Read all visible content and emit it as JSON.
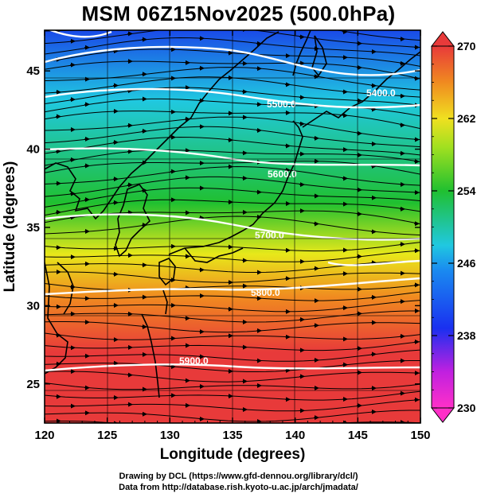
{
  "title": "MSM 06Z15Nov2025 (500.0hPa)",
  "credits": {
    "line1": "Drawing by DCL (https://www.gfd-dennou.org/library/dcl/)",
    "line2": "Data from http://database.rish.kyoto-u.ac.jp/arch/jmadata/"
  },
  "colors": {
    "red": "#e83a3a",
    "orange": "#f08a20",
    "yellow": "#e8e81a",
    "green": "#20c030",
    "cyan": "#20c8e0",
    "blue": "#1a4ae8",
    "purple": "#c020e0",
    "magenta": "#ff30c8"
  },
  "chart_data": {
    "type": "heatmap",
    "title": "MSM 06Z15Nov2025 (500.0hPa)",
    "xlabel": "Longitude (degrees)",
    "ylabel": "Latitude  (degrees)",
    "xlim": [
      120,
      150
    ],
    "ylim": [
      22.5,
      47.6
    ],
    "xticks": [
      "120",
      "125",
      "130",
      "135",
      "140",
      "145",
      "150"
    ],
    "yticks": [
      "25",
      "30",
      "35",
      "40",
      "45"
    ],
    "colorbar": {
      "quantity": "temperature",
      "range": [
        230,
        270
      ],
      "ticks": [
        "230",
        "238",
        "246",
        "254",
        "262",
        "270"
      ]
    },
    "contours": [
      {
        "label": "5400.0",
        "label_lon": 145.7,
        "label_lat": 44.9
      },
      {
        "label": "5500.0",
        "label_lon": 134.7,
        "label_lat": 43.5
      },
      {
        "label": "5600.0",
        "label_lon": 134.9,
        "label_lat": 39.4
      },
      {
        "label": "5700.0",
        "label_lon": 134.9,
        "label_lat": 35.3
      },
      {
        "label": "5800.0",
        "label_lon": 135.9,
        "label_lat": 31.5
      },
      {
        "label": "5900.0",
        "label_lon": 129.7,
        "label_lat": 26.5
      }
    ],
    "grid": true,
    "overlays": [
      "streamlines",
      "coastlines",
      "geopotential height contours"
    ]
  }
}
